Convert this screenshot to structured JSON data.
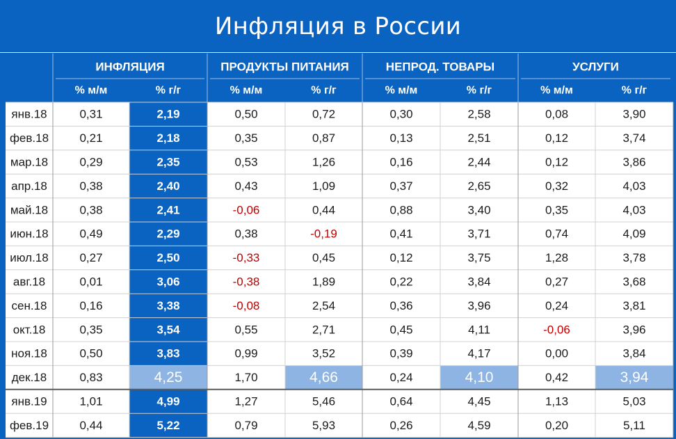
{
  "title": "Инфляция в России",
  "colors": {
    "header_bg": "#0a63c0",
    "header_text": "#ffffff",
    "highlight_column": "#0a63c0",
    "highlight_cell": "#8db4e2",
    "negative_text": "#c00000",
    "cell_text": "#1a1a1a"
  },
  "chart_data": {
    "type": "table",
    "groups": [
      {
        "name": "ИНФЛЯЦИЯ",
        "sub": [
          "% м/м",
          "% г/г"
        ]
      },
      {
        "name": "ПРОДУКТЫ ПИТАНИЯ",
        "sub": [
          "% м/м",
          "% г/г"
        ]
      },
      {
        "name": "НЕПРОД. ТОВАРЫ",
        "sub": [
          "% м/м",
          "% г/г"
        ]
      },
      {
        "name": "УСЛУГИ",
        "sub": [
          "% м/м",
          "% г/г"
        ]
      }
    ],
    "rows": [
      {
        "label": "янв.18",
        "values": [
          "0,31",
          "2,19",
          "0,50",
          "0,72",
          "0,30",
          "2,58",
          "0,08",
          "3,90"
        ]
      },
      {
        "label": "фев.18",
        "values": [
          "0,21",
          "2,18",
          "0,35",
          "0,87",
          "0,13",
          "2,51",
          "0,12",
          "3,74"
        ]
      },
      {
        "label": "мар.18",
        "values": [
          "0,29",
          "2,35",
          "0,53",
          "1,26",
          "0,16",
          "2,44",
          "0,12",
          "3,86"
        ]
      },
      {
        "label": "апр.18",
        "values": [
          "0,38",
          "2,40",
          "0,43",
          "1,09",
          "0,37",
          "2,65",
          "0,32",
          "4,03"
        ]
      },
      {
        "label": "май.18",
        "values": [
          "0,38",
          "2,41",
          "-0,06",
          "0,44",
          "0,88",
          "3,40",
          "0,35",
          "4,03"
        ]
      },
      {
        "label": "июн.18",
        "values": [
          "0,49",
          "2,29",
          "0,38",
          "-0,19",
          "0,41",
          "3,71",
          "0,74",
          "4,09"
        ]
      },
      {
        "label": "июл.18",
        "values": [
          "0,27",
          "2,50",
          "-0,33",
          "0,45",
          "0,12",
          "3,75",
          "1,28",
          "3,78"
        ]
      },
      {
        "label": "авг.18",
        "values": [
          "0,01",
          "3,06",
          "-0,38",
          "1,89",
          "0,22",
          "3,84",
          "0,27",
          "3,68"
        ]
      },
      {
        "label": "сен.18",
        "values": [
          "0,16",
          "3,38",
          "-0,08",
          "2,54",
          "0,36",
          "3,96",
          "0,24",
          "3,81"
        ]
      },
      {
        "label": "окт.18",
        "values": [
          "0,35",
          "3,54",
          "0,55",
          "2,71",
          "0,45",
          "4,11",
          "-0,06",
          "3,96"
        ]
      },
      {
        "label": "ноя.18",
        "values": [
          "0,50",
          "3,83",
          "0,99",
          "3,52",
          "0,39",
          "4,17",
          "0,00",
          "3,84"
        ]
      },
      {
        "label": "дек.18",
        "values": [
          "0,83",
          "4,25",
          "1,70",
          "4,66",
          "0,24",
          "4,10",
          "0,42",
          "3,94"
        ]
      },
      {
        "label": "янв.19",
        "values": [
          "1,01",
          "4,99",
          "1,27",
          "5,46",
          "0,64",
          "4,45",
          "1,13",
          "5,03"
        ]
      },
      {
        "label": "фев.19",
        "values": [
          "0,44",
          "5,22",
          "0,79",
          "5,93",
          "0,26",
          "4,59",
          "0,20",
          "5,11"
        ]
      }
    ],
    "highlighted_row": "дек.18",
    "highlighted_column": 1
  }
}
